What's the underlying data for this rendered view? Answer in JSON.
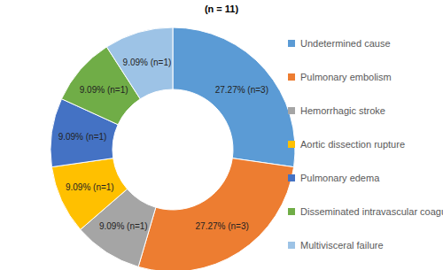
{
  "chart_data": {
    "type": "pie",
    "title": "(n = 11)",
    "categories": [
      "Undetermined cause",
      "Pulmonary embolism",
      "Hemorrhagic stroke",
      "Aortic dissection rupture",
      "Pulmonary edema",
      "Disseminated intravascular coagulation",
      "Multivisceral failure"
    ],
    "values": [
      27.27,
      27.27,
      9.09,
      9.09,
      9.09,
      9.09,
      9.09
    ],
    "value_labels": [
      "27.27% (n=3)",
      "27.27% (n=3)",
      "9.09% (n=1)",
      "9.09% (n=1)",
      "9.09% (n=1)",
      "9.09% (n=1)",
      "9.09% (n=1)"
    ],
    "colors": [
      "#5B9BD5",
      "#ED7D31",
      "#A5A5A5",
      "#FFC000",
      "#4472C4",
      "#70AD47",
      "#9DC3E6"
    ],
    "legend": "right",
    "data_labels": true
  }
}
